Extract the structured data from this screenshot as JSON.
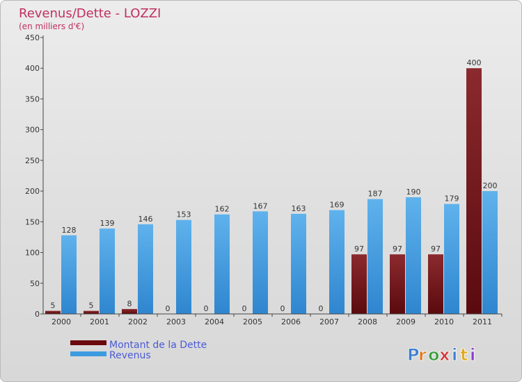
{
  "chart_data": {
    "type": "bar",
    "title": "Revenus/Dette - LOZZI",
    "subtitle": "(en milliers d'€)",
    "xlabel": "",
    "ylabel": "",
    "ylim": [
      0,
      450
    ],
    "yticks": [
      "0",
      "50",
      "100",
      "150",
      "200",
      "250",
      "300",
      "350",
      "400",
      "450"
    ],
    "grid": false,
    "legend_position": "bottom-left",
    "categories": [
      "2000",
      "2001",
      "2002",
      "2003",
      "2004",
      "2005",
      "2006",
      "2007",
      "2008",
      "2009",
      "2010",
      "2011"
    ],
    "series": [
      {
        "name": "Montant de la Dette",
        "color": "#7a1a1e",
        "values": [
          5,
          5,
          8,
          0,
          0,
          0,
          0,
          0,
          97,
          97,
          97,
          400
        ],
        "labels": [
          "5",
          "5",
          "8",
          "0",
          "0",
          "0",
          "0",
          "0",
          "97",
          "97",
          "97",
          "400"
        ]
      },
      {
        "name": "Revenus",
        "color": "#3d9be0",
        "values": [
          128,
          139,
          146,
          153,
          162,
          167,
          163,
          169,
          187,
          190,
          179,
          200
        ],
        "labels": [
          "128",
          "139",
          "146",
          "153",
          "162",
          "167",
          "163",
          "169",
          "187",
          "190",
          "179",
          "200"
        ]
      }
    ]
  },
  "logo": {
    "text": "Proxiti",
    "letters": [
      "P",
      "r",
      "o",
      "x",
      "i",
      "t",
      "i"
    ]
  },
  "colors": {
    "title": "#c03060",
    "axis": "#333333",
    "legend_text": "#4a5ad8"
  }
}
